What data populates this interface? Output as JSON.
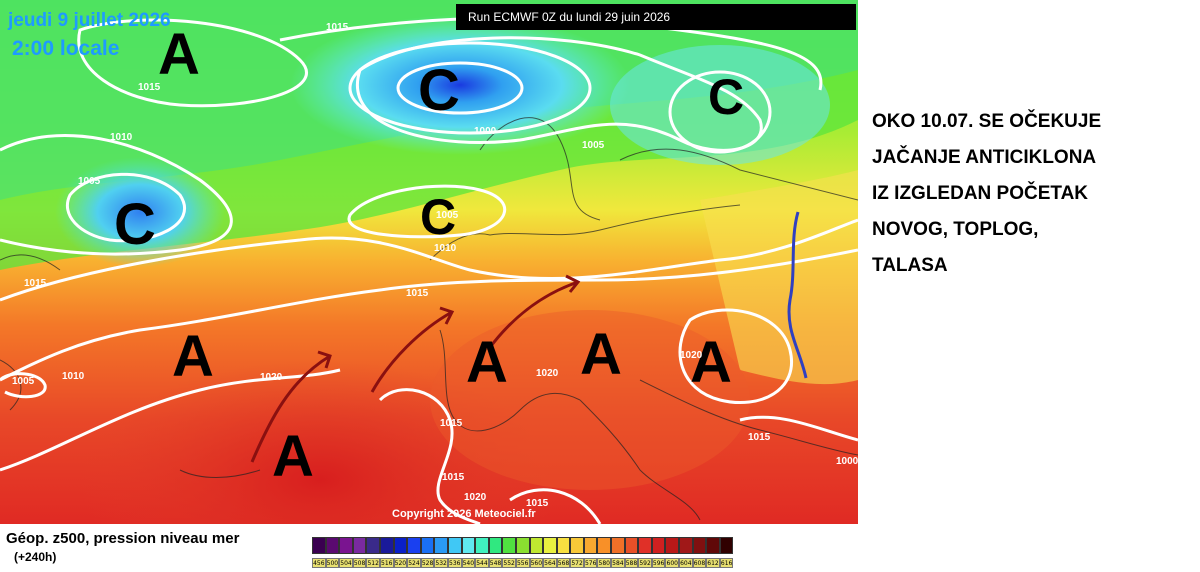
{
  "map": {
    "run_banner": "Run ECMWF 0Z du lundi 29 juin 2026",
    "date": "jeudi 9 juillet 2026",
    "time": "2:00 locale",
    "copyright": "Copyright 2026 Meteociel.fr",
    "high_label": "A",
    "low_label": "C",
    "isobar_labels": [
      "1015",
      "1015",
      "1010",
      "1005",
      "1000",
      "1005",
      "1005",
      "1010",
      "1015",
      "1015",
      "1010",
      "1005",
      "1020",
      "1020",
      "1020",
      "1015",
      "1015",
      "1020",
      "1015",
      "1015",
      "1000"
    ]
  },
  "annotation": {
    "lines": [
      "OKO 10.07. SE OČEKUJE",
      "JAČANJE ANTICIKLONA",
      "IZ IZGLEDAN POČETAK",
      "NOVOG, TOPLOG,",
      "TALASA"
    ]
  },
  "legend": {
    "title": "Géop. z500, pression niveau mer",
    "subtitle": "(+240h)",
    "values": [
      "456",
      "500",
      "504",
      "508",
      "512",
      "516",
      "520",
      "524",
      "528",
      "532",
      "536",
      "540",
      "544",
      "548",
      "552",
      "556",
      "560",
      "564",
      "568",
      "572",
      "576",
      "580",
      "584",
      "588",
      "592",
      "596",
      "600",
      "604",
      "608",
      "612",
      "616"
    ],
    "colors": [
      "#3a0050",
      "#5a0a70",
      "#7a1490",
      "#7a2aa0",
      "#3a2a8a",
      "#1a1a9a",
      "#0a20c8",
      "#1a40f0",
      "#1a70f5",
      "#2a9af5",
      "#40c8f5",
      "#60e8f0",
      "#40f0c0",
      "#30e880",
      "#50e040",
      "#8ae030",
      "#c0e830",
      "#e8f040",
      "#f8e040",
      "#f8c838",
      "#f8a830",
      "#f89028",
      "#f07028",
      "#e85028",
      "#e03028",
      "#d02020",
      "#b81818",
      "#a01818",
      "#801010",
      "#600808",
      "#300000"
    ]
  },
  "colors": {
    "isobar": "#ffffff",
    "arrow": "#8a1010",
    "front": "#3040c0",
    "date_text": "#1e9bff"
  }
}
